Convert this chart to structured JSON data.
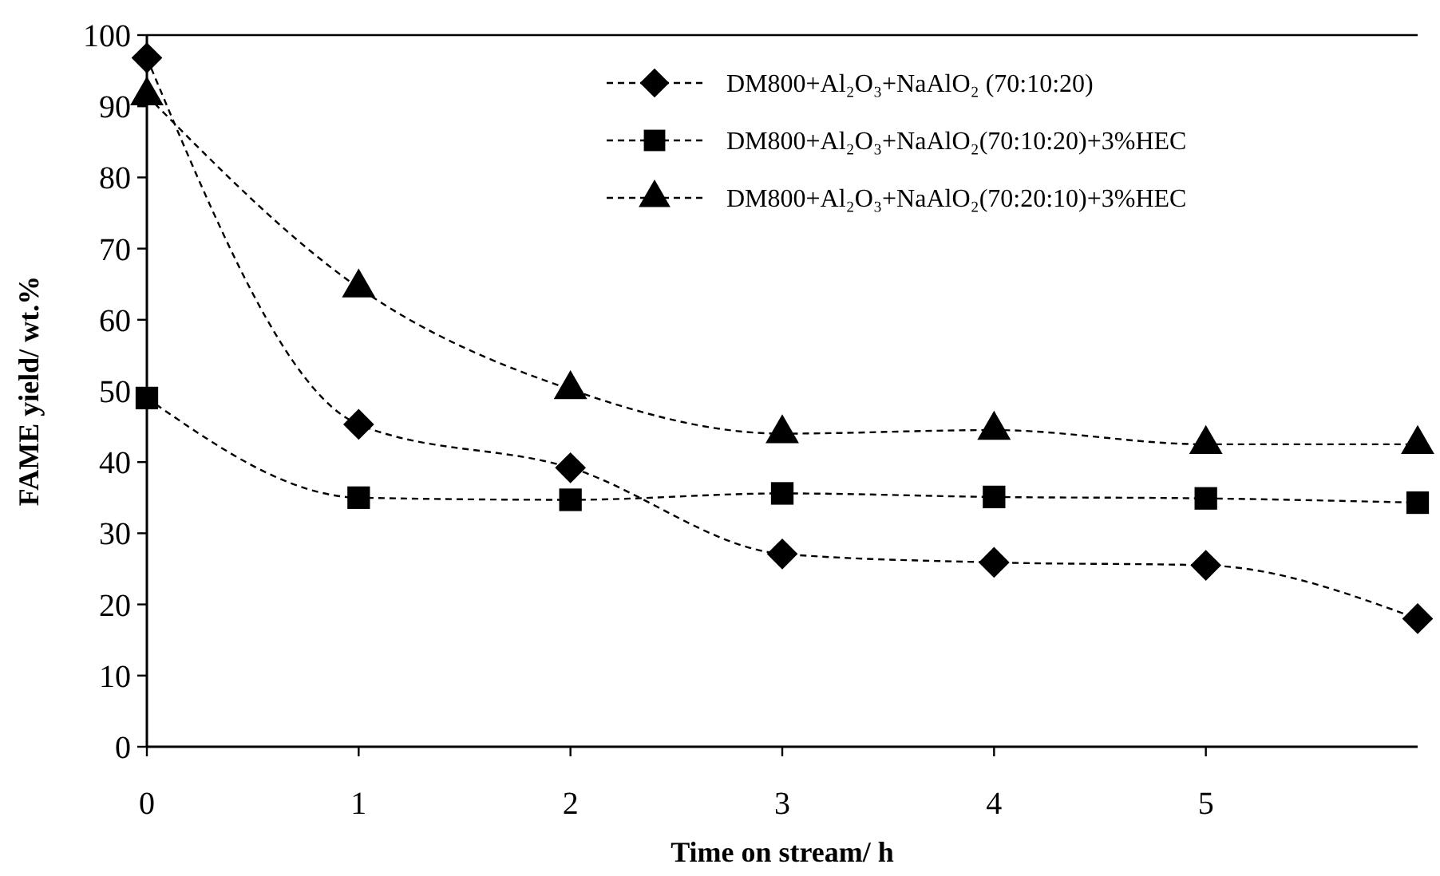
{
  "chart_data": {
    "type": "line",
    "xlabel": "Time on stream/ h",
    "ylabel": "FAME yield/ wt.%",
    "x": [
      0,
      1,
      2,
      3,
      4,
      5,
      6
    ],
    "xlim": [
      0,
      6
    ],
    "xticks": [
      0,
      1,
      2,
      3,
      4,
      5
    ],
    "ylim": [
      0,
      100
    ],
    "yticks": [
      0,
      10,
      20,
      30,
      40,
      50,
      60,
      70,
      80,
      90,
      100
    ],
    "grid": false,
    "legend": "top right",
    "line_style": "dashed",
    "series": [
      {
        "name": "DM800+Al₂O₃+NaAlO₂ (70:10:20)",
        "color": "#000000",
        "marker": "diamond",
        "values": [
          96.8,
          45.3,
          39.2,
          27.1,
          25.9,
          25.5,
          18
        ]
      },
      {
        "name": "DM800+Al₂O₃+NaAlO₂(70:10:20)+3%HEC",
        "color": "#000000",
        "marker": "square",
        "values": [
          49,
          35,
          34.7,
          35.6,
          35.1,
          34.9,
          34.3
        ]
      },
      {
        "name": "DM800+Al₂O₃+NaAlO₂(70:20:10)+3%HEC",
        "color": "#000000",
        "marker": "triangle",
        "values": [
          91.5,
          64.5,
          50.2,
          44,
          44.5,
          42.5,
          42.5
        ]
      }
    ]
  }
}
